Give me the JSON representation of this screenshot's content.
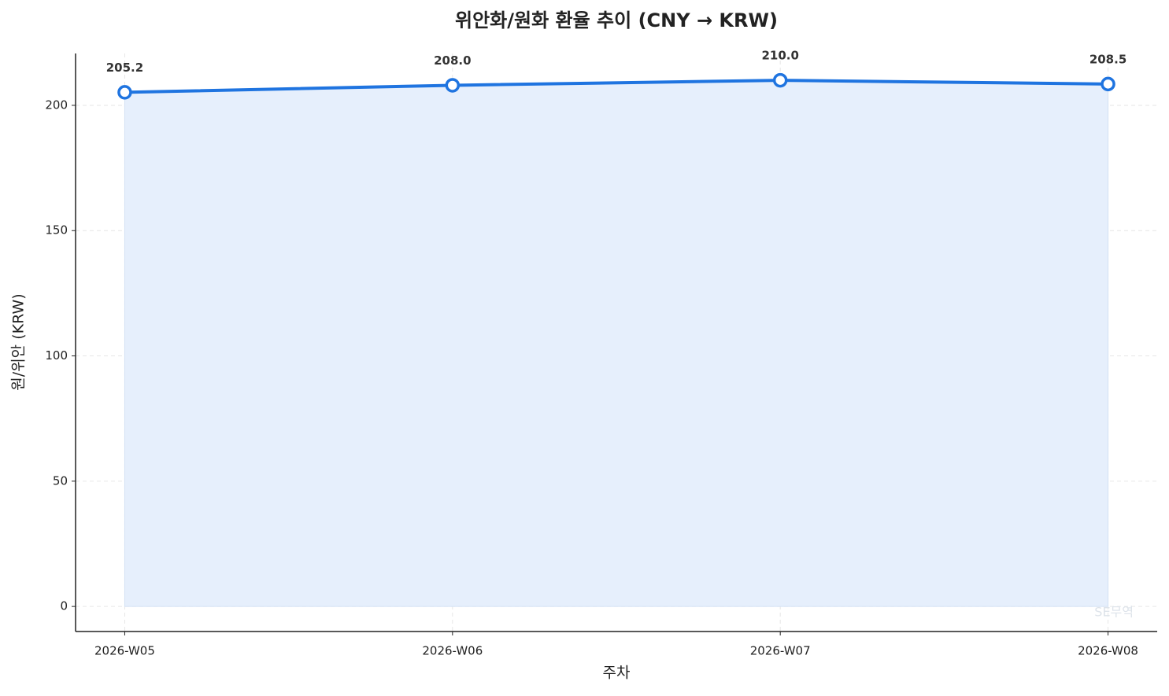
{
  "chart_data": {
    "type": "line",
    "title": "위안화/원화 환율 추이 (CNY → KRW)",
    "x_label": "주차",
    "y_label": "원/위안 (KRW)",
    "categories": [
      "2026-W05",
      "2026-W06",
      "2026-W07",
      "2026-W08"
    ],
    "values": [
      205.2,
      208.0,
      210.0,
      208.5
    ],
    "value_labels": [
      "205.2",
      "208.0",
      "210.0",
      "208.5"
    ],
    "color": "#1f74e0",
    "fill_color": "#e6effc",
    "ylim": [
      -10,
      220.7
    ],
    "yticks": [
      0,
      50,
      100,
      150,
      200
    ],
    "grid": true,
    "watermark": "SE무역"
  }
}
